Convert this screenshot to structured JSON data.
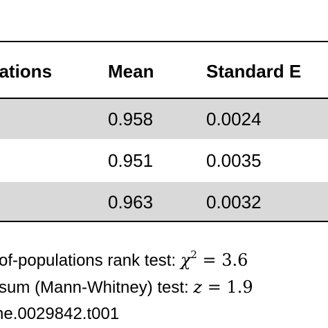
{
  "table": {
    "headers": {
      "observations": "vations",
      "mean": "Mean",
      "standard_error": "Standard E"
    },
    "rows": [
      {
        "mean": "0.958",
        "standard_error": "0.0024"
      },
      {
        "mean": "0.951",
        "standard_error": "0.0035"
      },
      {
        "mean": "0.963",
        "standard_error": "0.0032"
      }
    ]
  },
  "footnotes": {
    "line1_prefix": "-of-populations rank test: ",
    "line1_stat_symbol": "χ",
    "line1_stat_sup": "2",
    "line1_equals": " = 3.6",
    "line2_prefix": "-sum (Mann-Whitney) test: ",
    "line2_stat_symbol": "z",
    "line2_equals": " = 1.9",
    "line3": "ne.0029842.t001"
  },
  "colors": {
    "rule": "#000000",
    "shaded_row": "#d9d9d9",
    "background": "#ffffff"
  }
}
